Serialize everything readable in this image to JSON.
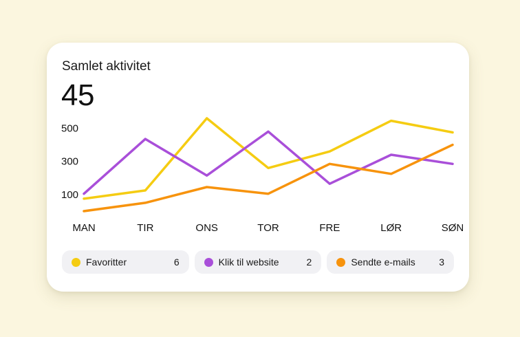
{
  "card": {
    "title": "Samlet aktivitet",
    "total": "45"
  },
  "colors": {
    "background": "#fbf6df",
    "card": "#ffffff",
    "legend_pill": "#f1f1f4"
  },
  "chart_data": {
    "type": "line",
    "categories": [
      "MAN",
      "TIR",
      "ONS",
      "TOR",
      "FRE",
      "LØR",
      "SØN"
    ],
    "y_ticks": [
      100,
      300,
      500
    ],
    "ylim": [
      0,
      560
    ],
    "grid": false,
    "legend_placement": "bottom",
    "series": [
      {
        "name": "Favoritter",
        "color": "#f5cc12",
        "count": "6",
        "values": [
          75,
          125,
          560,
          260,
          360,
          545,
          475
        ]
      },
      {
        "name": "Klik til website",
        "color": "#a94fd9",
        "count": "2",
        "values": [
          105,
          435,
          215,
          480,
          165,
          340,
          285
        ]
      },
      {
        "name": "Sendte e-mails",
        "color": "#f7930d",
        "count": "3",
        "values": [
          0,
          50,
          145,
          105,
          285,
          225,
          400
        ]
      }
    ]
  }
}
